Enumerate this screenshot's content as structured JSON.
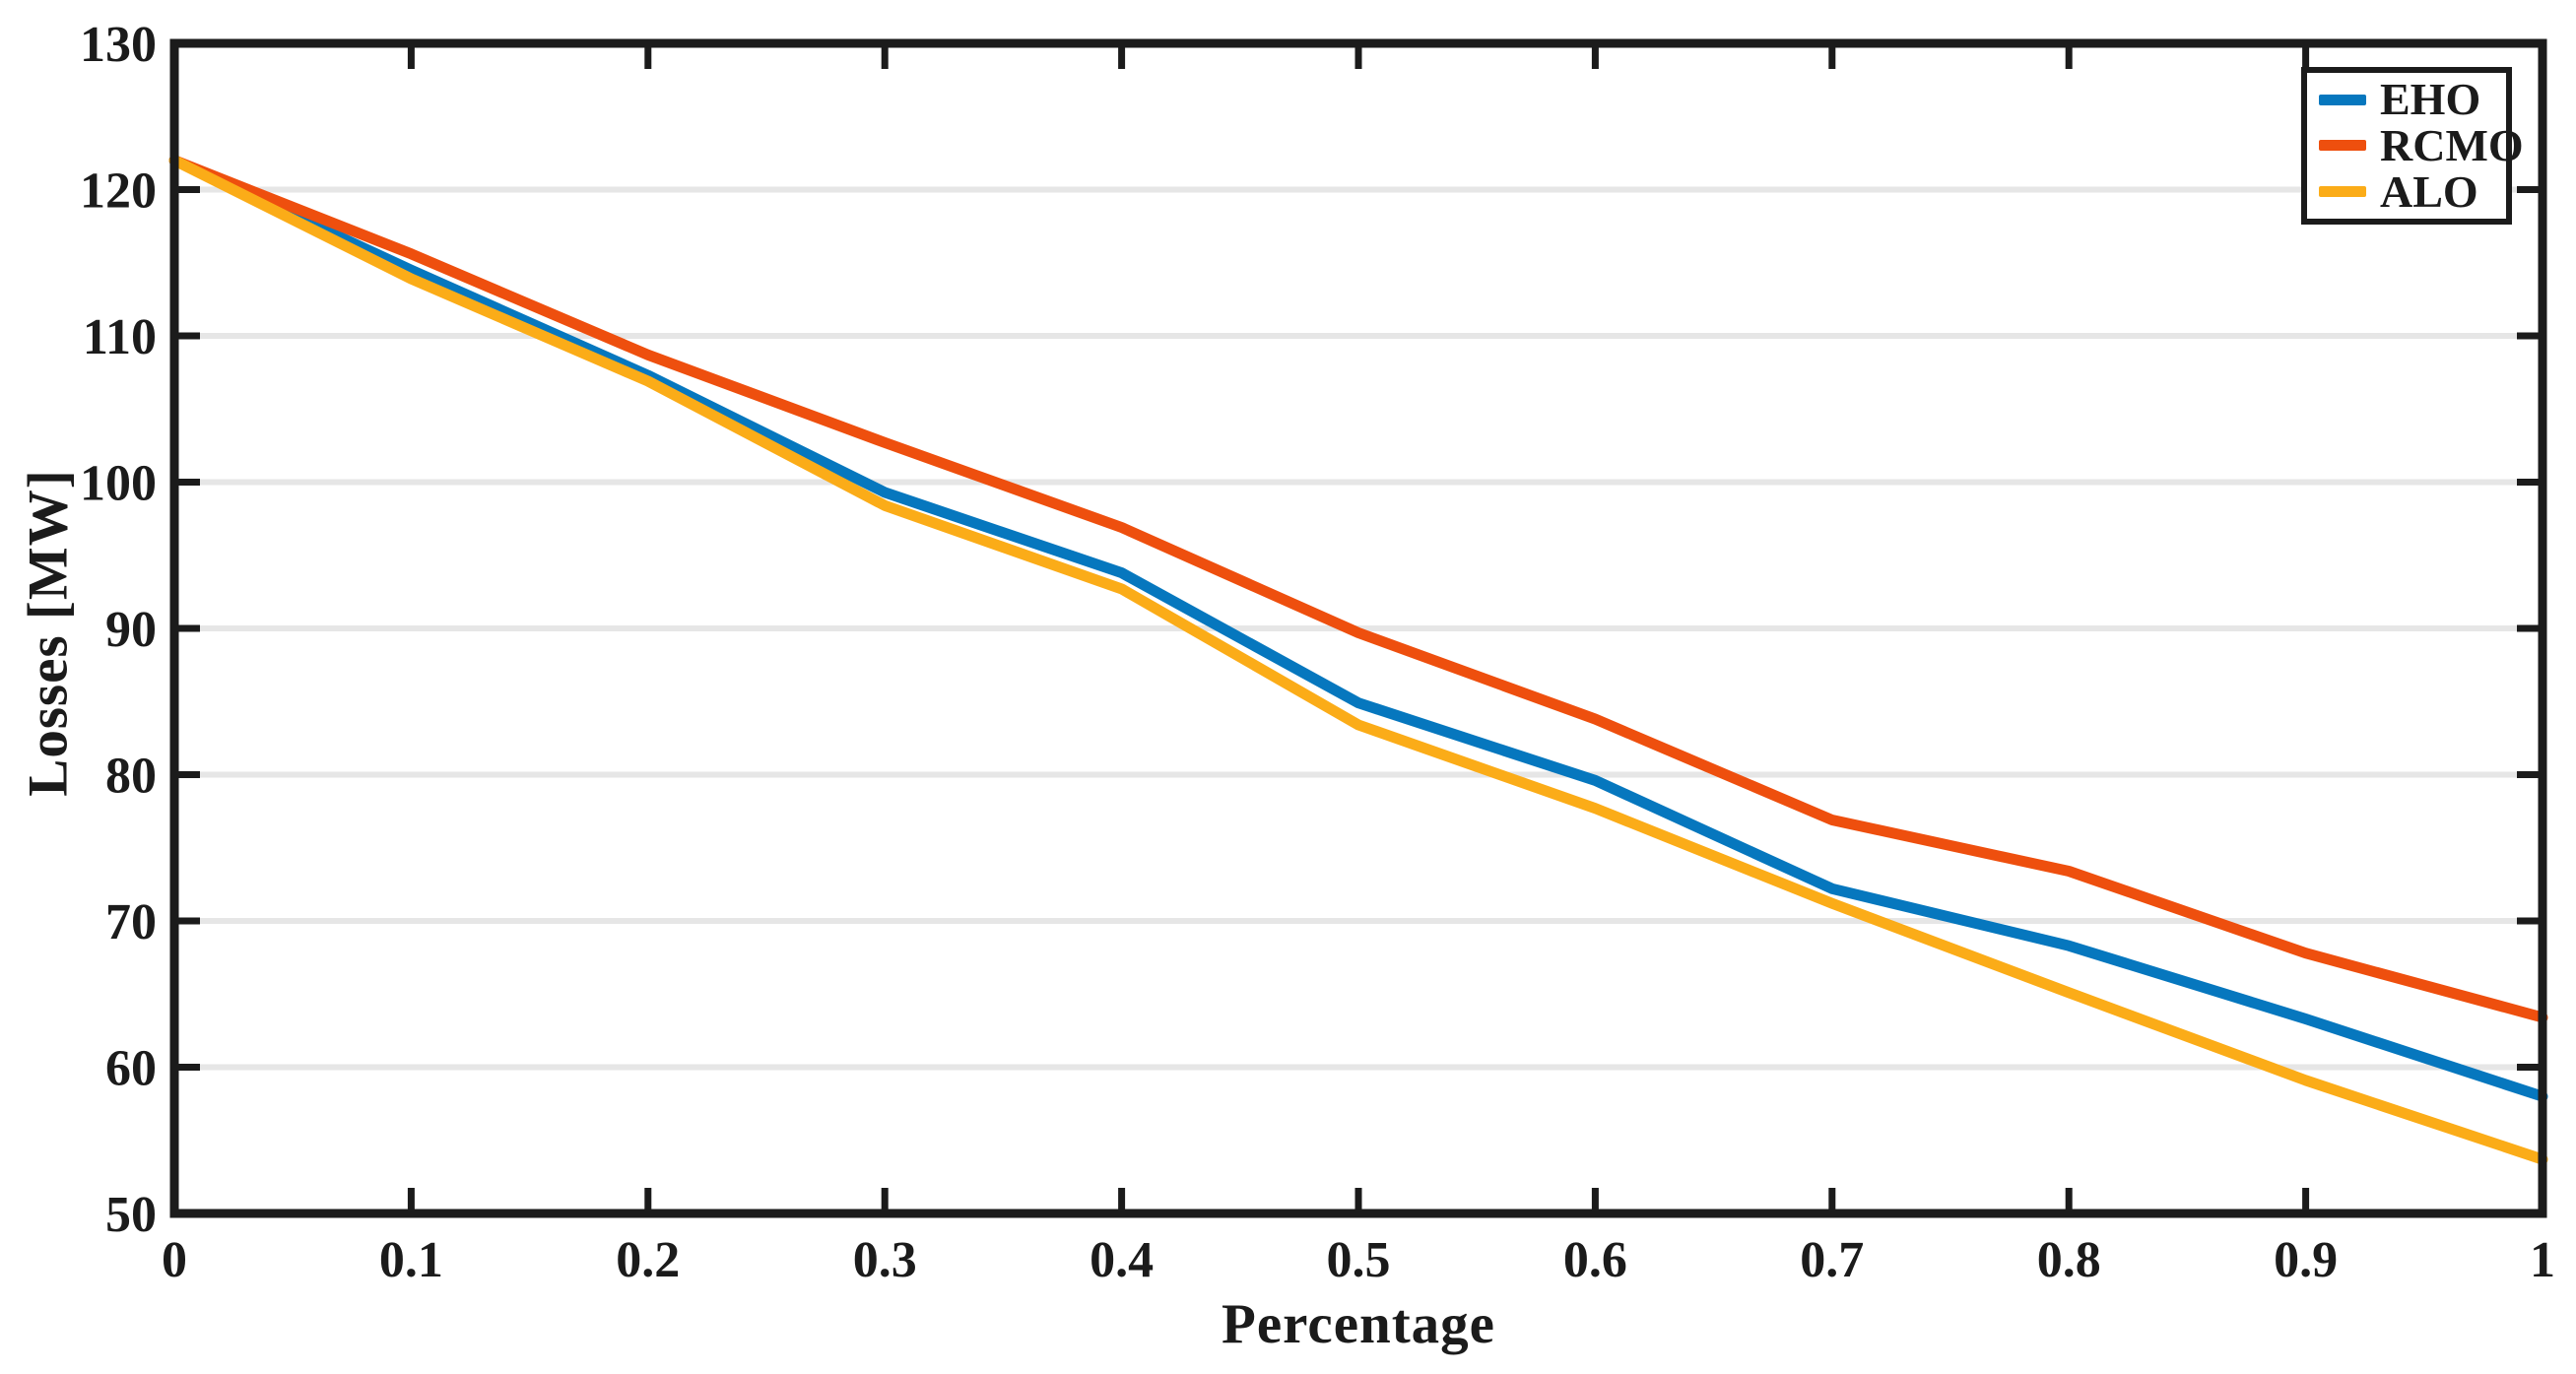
{
  "chart_data": {
    "type": "line",
    "title": "",
    "xlabel": "Percentage",
    "ylabel": "Losses [MW]",
    "xlim": [
      0,
      1
    ],
    "ylim": [
      50,
      130
    ],
    "x_ticks": [
      0,
      0.1,
      0.2,
      0.3,
      0.4,
      0.5,
      0.6,
      0.7,
      0.8,
      0.9,
      1
    ],
    "x_tick_labels": [
      "0",
      "0.1",
      "0.2",
      "0.3",
      "0.4",
      "0.5",
      "0.6",
      "0.7",
      "0.8",
      "0.9",
      "1"
    ],
    "y_ticks": [
      50,
      60,
      70,
      80,
      90,
      100,
      110,
      120,
      130
    ],
    "y_tick_labels": [
      "50",
      "60",
      "70",
      "80",
      "90",
      "100",
      "110",
      "120",
      "130"
    ],
    "y_gridlines": [
      60,
      70,
      80,
      90,
      100,
      110,
      120
    ],
    "grid": "horizontal-only",
    "legend_position": "top-right",
    "box": "on",
    "tick_direction": "in",
    "x": [
      0,
      0.1,
      0.2,
      0.3,
      0.4,
      0.5,
      0.6,
      0.7,
      0.8,
      0.9,
      1
    ],
    "series": [
      {
        "name": "EHO",
        "color": "#0677BE",
        "values": [
          122.0,
          114.5,
          107.3,
          99.3,
          93.8,
          84.9,
          79.6,
          72.2,
          68.3,
          63.3,
          58.0
        ]
      },
      {
        "name": "RCMO",
        "color": "#EE4F0E",
        "values": [
          122.0,
          115.6,
          108.7,
          102.7,
          96.9,
          89.7,
          83.8,
          76.9,
          73.4,
          67.8,
          63.4
        ]
      },
      {
        "name": "ALO",
        "color": "#FBAC18",
        "values": [
          122.0,
          113.9,
          106.9,
          98.4,
          92.7,
          83.4,
          77.7,
          71.2,
          65.1,
          59.1,
          53.7
        ]
      }
    ],
    "colors": {
      "axis": "#1b1b1b",
      "grid": "#e6e6e6",
      "background": "#ffffff"
    }
  }
}
